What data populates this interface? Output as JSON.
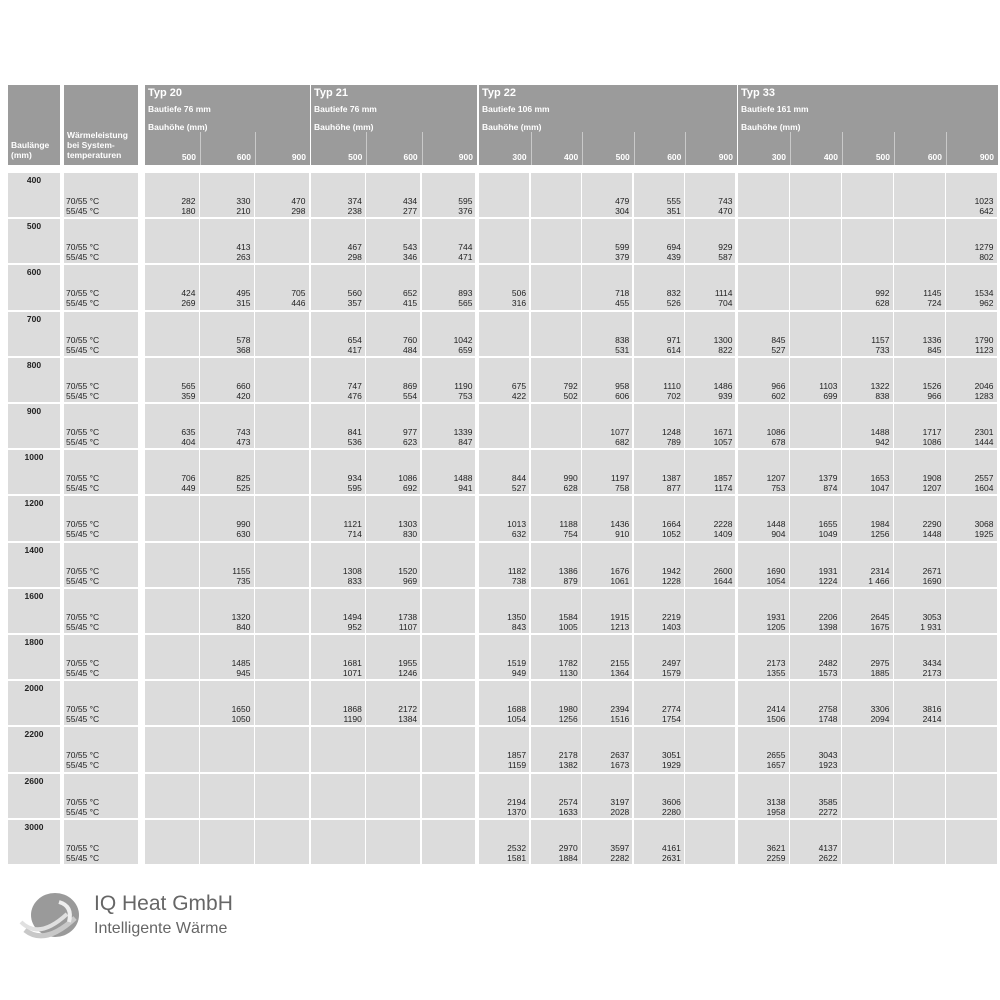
{
  "header": {
    "baulaenge": "Baulänge (mm)",
    "waermeleistung": "Wärmeleistung bei System-temperaturen",
    "bauhoehe_label": "Bauhöhe (mm)",
    "groups": [
      {
        "title": "Typ 20",
        "depth": "Bautiefe 76 mm",
        "heights": [
          "500",
          "600",
          "900"
        ]
      },
      {
        "title": "Typ 21",
        "depth": "Bautiefe 76 mm",
        "heights": [
          "500",
          "600",
          "900"
        ]
      },
      {
        "title": "Typ 22",
        "depth": "Bautiefe 106 mm",
        "heights": [
          "300",
          "400",
          "500",
          "600",
          "900"
        ]
      },
      {
        "title": "Typ 33",
        "depth": "Bautiefe 161 mm",
        "heights": [
          "300",
          "400",
          "500",
          "600",
          "900"
        ]
      }
    ]
  },
  "temps": [
    "70/55 °C",
    "55/45 °C"
  ],
  "rows": [
    {
      "length": "400",
      "cells": [
        [
          "282",
          "180"
        ],
        [
          "330",
          "210"
        ],
        [
          "470",
          "298"
        ],
        [
          "374",
          "238"
        ],
        [
          "434",
          "277"
        ],
        [
          "595",
          "376"
        ],
        null,
        null,
        [
          "479",
          "304"
        ],
        [
          "555",
          "351"
        ],
        [
          "743",
          "470"
        ],
        null,
        null,
        null,
        null,
        [
          "1023",
          "642"
        ]
      ]
    },
    {
      "length": "500",
      "cells": [
        null,
        [
          "413",
          "263"
        ],
        null,
        [
          "467",
          "298"
        ],
        [
          "543",
          "346"
        ],
        [
          "744",
          "471"
        ],
        null,
        null,
        [
          "599",
          "379"
        ],
        [
          "694",
          "439"
        ],
        [
          "929",
          "587"
        ],
        null,
        null,
        null,
        null,
        [
          "1279",
          "802"
        ]
      ]
    },
    {
      "length": "600",
      "cells": [
        [
          "424",
          "269"
        ],
        [
          "495",
          "315"
        ],
        [
          "705",
          "446"
        ],
        [
          "560",
          "357"
        ],
        [
          "652",
          "415"
        ],
        [
          "893",
          "565"
        ],
        [
          "506",
          "316"
        ],
        null,
        [
          "718",
          "455"
        ],
        [
          "832",
          "526"
        ],
        [
          "1114",
          "704"
        ],
        null,
        null,
        [
          "992",
          "628"
        ],
        [
          "1145",
          "724"
        ],
        [
          "1534",
          "962"
        ]
      ]
    },
    {
      "length": "700",
      "cells": [
        null,
        [
          "578",
          "368"
        ],
        null,
        [
          "654",
          "417"
        ],
        [
          "760",
          "484"
        ],
        [
          "1042",
          "659"
        ],
        null,
        null,
        [
          "838",
          "531"
        ],
        [
          "971",
          "614"
        ],
        [
          "1300",
          "822"
        ],
        [
          "845",
          "527"
        ],
        null,
        [
          "1157",
          "733"
        ],
        [
          "1336",
          "845"
        ],
        [
          "1790",
          "1123"
        ]
      ]
    },
    {
      "length": "800",
      "cells": [
        [
          "565",
          "359"
        ],
        [
          "660",
          "420"
        ],
        null,
        [
          "747",
          "476"
        ],
        [
          "869",
          "554"
        ],
        [
          "1190",
          "753"
        ],
        [
          "675",
          "422"
        ],
        [
          "792",
          "502"
        ],
        [
          "958",
          "606"
        ],
        [
          "1110",
          "702"
        ],
        [
          "1486",
          "939"
        ],
        [
          "966",
          "602"
        ],
        [
          "1103",
          "699"
        ],
        [
          "1322",
          "838"
        ],
        [
          "1526",
          "966"
        ],
        [
          "2046",
          "1283"
        ]
      ]
    },
    {
      "length": "900",
      "cells": [
        [
          "635",
          "404"
        ],
        [
          "743",
          "473"
        ],
        null,
        [
          "841",
          "536"
        ],
        [
          "977",
          "623"
        ],
        [
          "1339",
          "847"
        ],
        null,
        null,
        [
          "1077",
          "682"
        ],
        [
          "1248",
          "789"
        ],
        [
          "1671",
          "1057"
        ],
        [
          "1086",
          "678"
        ],
        null,
        [
          "1488",
          "942"
        ],
        [
          "1717",
          "1086"
        ],
        [
          "2301",
          "1444"
        ]
      ]
    },
    {
      "length": "1000",
      "cells": [
        [
          "706",
          "449"
        ],
        [
          "825",
          "525"
        ],
        null,
        [
          "934",
          "595"
        ],
        [
          "1086",
          "692"
        ],
        [
          "1488",
          "941"
        ],
        [
          "844",
          "527"
        ],
        [
          "990",
          "628"
        ],
        [
          "1197",
          "758"
        ],
        [
          "1387",
          "877"
        ],
        [
          "1857",
          "1174"
        ],
        [
          "1207",
          "753"
        ],
        [
          "1379",
          "874"
        ],
        [
          "1653",
          "1047"
        ],
        [
          "1908",
          "1207"
        ],
        [
          "2557",
          "1604"
        ]
      ]
    },
    {
      "length": "1200",
      "cells": [
        null,
        [
          "990",
          "630"
        ],
        null,
        [
          "1121",
          "714"
        ],
        [
          "1303",
          "830"
        ],
        null,
        [
          "1013",
          "632"
        ],
        [
          "1188",
          "754"
        ],
        [
          "1436",
          "910"
        ],
        [
          "1664",
          "1052"
        ],
        [
          "2228",
          "1409"
        ],
        [
          "1448",
          "904"
        ],
        [
          "1655",
          "1049"
        ],
        [
          "1984",
          "1256"
        ],
        [
          "2290",
          "1448"
        ],
        [
          "3068",
          "1925"
        ]
      ]
    },
    {
      "length": "1400",
      "cells": [
        null,
        [
          "1155",
          "735"
        ],
        null,
        [
          "1308",
          "833"
        ],
        [
          "1520",
          "969"
        ],
        null,
        [
          "1182",
          "738"
        ],
        [
          "1386",
          "879"
        ],
        [
          "1676",
          "1061"
        ],
        [
          "1942",
          "1228"
        ],
        [
          "2600",
          "1644"
        ],
        [
          "1690",
          "1054"
        ],
        [
          "1931",
          "1224"
        ],
        [
          "2314",
          "1 466"
        ],
        [
          "2671",
          "1690"
        ],
        null
      ]
    },
    {
      "length": "1600",
      "cells": [
        null,
        [
          "1320",
          "840"
        ],
        null,
        [
          "1494",
          "952"
        ],
        [
          "1738",
          "1107"
        ],
        null,
        [
          "1350",
          "843"
        ],
        [
          "1584",
          "1005"
        ],
        [
          "1915",
          "1213"
        ],
        [
          "2219",
          "1403"
        ],
        null,
        [
          "1931",
          "1205"
        ],
        [
          "2206",
          "1398"
        ],
        [
          "2645",
          "1675"
        ],
        [
          "3053",
          "1 931"
        ],
        null
      ]
    },
    {
      "length": "1800",
      "cells": [
        null,
        [
          "1485",
          "945"
        ],
        null,
        [
          "1681",
          "1071"
        ],
        [
          "1955",
          "1246"
        ],
        null,
        [
          "1519",
          "949"
        ],
        [
          "1782",
          "1130"
        ],
        [
          "2155",
          "1364"
        ],
        [
          "2497",
          "1579"
        ],
        null,
        [
          "2173",
          "1355"
        ],
        [
          "2482",
          "1573"
        ],
        [
          "2975",
          "1885"
        ],
        [
          "3434",
          "2173"
        ],
        null
      ]
    },
    {
      "length": "2000",
      "cells": [
        null,
        [
          "1650",
          "1050"
        ],
        null,
        [
          "1868",
          "1190"
        ],
        [
          "2172",
          "1384"
        ],
        null,
        [
          "1688",
          "1054"
        ],
        [
          "1980",
          "1256"
        ],
        [
          "2394",
          "1516"
        ],
        [
          "2774",
          "1754"
        ],
        null,
        [
          "2414",
          "1506"
        ],
        [
          "2758",
          "1748"
        ],
        [
          "3306",
          "2094"
        ],
        [
          "3816",
          "2414"
        ],
        null
      ]
    },
    {
      "length": "2200",
      "cells": [
        null,
        null,
        null,
        null,
        null,
        null,
        [
          "1857",
          "1159"
        ],
        [
          "2178",
          "1382"
        ],
        [
          "2637",
          "1673"
        ],
        [
          "3051",
          "1929"
        ],
        null,
        [
          "2655",
          "1657"
        ],
        [
          "3043",
          "1923"
        ],
        null,
        null,
        null
      ]
    },
    {
      "length": "2600",
      "cells": [
        null,
        null,
        null,
        null,
        null,
        null,
        [
          "2194",
          "1370"
        ],
        [
          "2574",
          "1633"
        ],
        [
          "3197",
          "2028"
        ],
        [
          "3606",
          "2280"
        ],
        null,
        [
          "3138",
          "1958"
        ],
        [
          "3585",
          "2272"
        ],
        null,
        null,
        null
      ]
    },
    {
      "length": "3000",
      "cells": [
        null,
        null,
        null,
        null,
        null,
        null,
        [
          "2532",
          "1581"
        ],
        [
          "2970",
          "1884"
        ],
        [
          "3597",
          "2282"
        ],
        [
          "4161",
          "2631"
        ],
        null,
        [
          "3621",
          "2259"
        ],
        [
          "4137",
          "2622"
        ],
        null,
        null,
        null
      ]
    }
  ],
  "logo": {
    "name": "IQ Heat GmbH",
    "tagline": "Intelligente Wärme"
  }
}
